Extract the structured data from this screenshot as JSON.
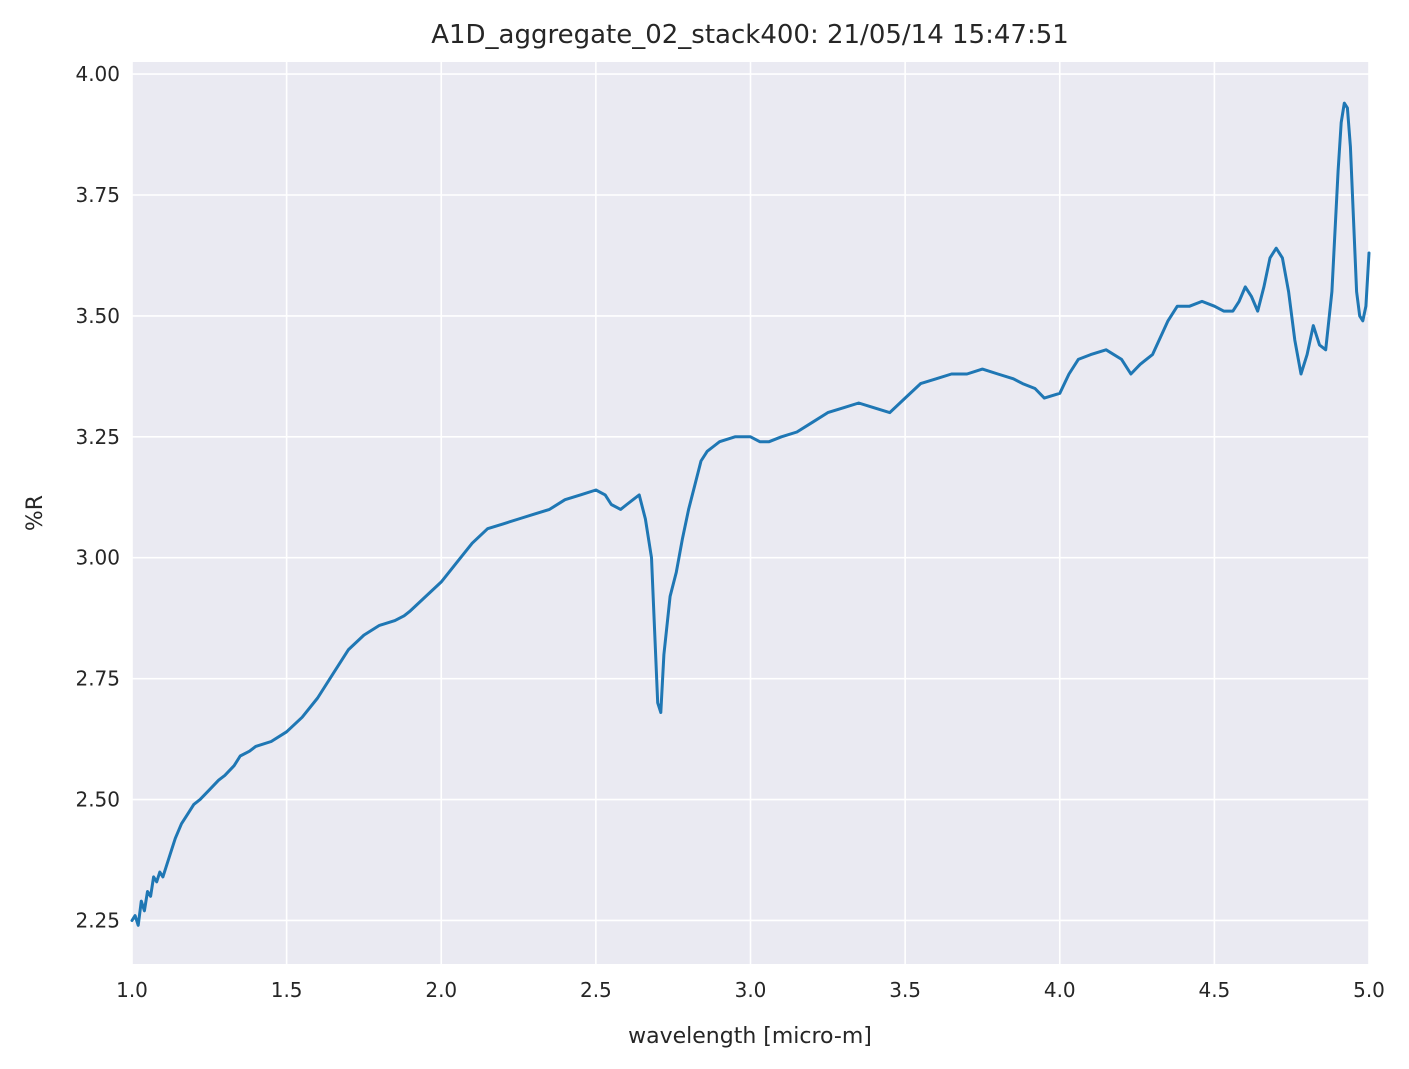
{
  "chart_data": {
    "type": "line",
    "title": "A1D_aggregate_02_stack400:  21/05/14 15:47:51",
    "xlabel": "wavelength [micro-m]",
    "ylabel": "%R",
    "xlim": [
      1.0,
      5.0
    ],
    "ylim": [
      2.16,
      4.025
    ],
    "xticks": [
      "1.0",
      "1.5",
      "2.0",
      "2.5",
      "3.0",
      "3.5",
      "4.0",
      "4.5",
      "5.0"
    ],
    "yticks": [
      "2.25",
      "2.50",
      "2.75",
      "3.00",
      "3.25",
      "3.50",
      "3.75",
      "4.00"
    ],
    "grid": true,
    "background": "#eaeaf2",
    "line_color": "#1f77b4",
    "series": [
      {
        "x": [
          1.0,
          1.01,
          1.02,
          1.03,
          1.04,
          1.05,
          1.06,
          1.07,
          1.08,
          1.09,
          1.1,
          1.12,
          1.14,
          1.16,
          1.18,
          1.2,
          1.22,
          1.25,
          1.28,
          1.3,
          1.33,
          1.35,
          1.38,
          1.4,
          1.45,
          1.5,
          1.55,
          1.6,
          1.65,
          1.7,
          1.75,
          1.8,
          1.85,
          1.88,
          1.9,
          1.95,
          2.0,
          2.05,
          2.1,
          2.15,
          2.2,
          2.25,
          2.3,
          2.35,
          2.4,
          2.45,
          2.5,
          2.53,
          2.55,
          2.58,
          2.6,
          2.62,
          2.64,
          2.66,
          2.68,
          2.69,
          2.7,
          2.71,
          2.72,
          2.74,
          2.76,
          2.78,
          2.8,
          2.82,
          2.84,
          2.86,
          2.88,
          2.9,
          2.95,
          3.0,
          3.03,
          3.06,
          3.1,
          3.15,
          3.2,
          3.25,
          3.3,
          3.35,
          3.4,
          3.45,
          3.5,
          3.55,
          3.6,
          3.65,
          3.7,
          3.75,
          3.8,
          3.85,
          3.88,
          3.92,
          3.95,
          4.0,
          4.03,
          4.06,
          4.1,
          4.15,
          4.2,
          4.23,
          4.26,
          4.3,
          4.35,
          4.38,
          4.42,
          4.46,
          4.5,
          4.53,
          4.56,
          4.58,
          4.6,
          4.62,
          4.64,
          4.66,
          4.68,
          4.7,
          4.72,
          4.74,
          4.76,
          4.78,
          4.8,
          4.82,
          4.84,
          4.86,
          4.88,
          4.9,
          4.91,
          4.92,
          4.93,
          4.94,
          4.95,
          4.96,
          4.97,
          4.98,
          4.99,
          5.0
        ],
        "y": [
          2.25,
          2.26,
          2.24,
          2.29,
          2.27,
          2.31,
          2.3,
          2.34,
          2.33,
          2.35,
          2.34,
          2.38,
          2.42,
          2.45,
          2.47,
          2.49,
          2.5,
          2.52,
          2.54,
          2.55,
          2.57,
          2.59,
          2.6,
          2.61,
          2.62,
          2.64,
          2.67,
          2.71,
          2.76,
          2.81,
          2.84,
          2.86,
          2.87,
          2.88,
          2.89,
          2.92,
          2.95,
          2.99,
          3.03,
          3.06,
          3.07,
          3.08,
          3.09,
          3.1,
          3.12,
          3.13,
          3.14,
          3.13,
          3.11,
          3.1,
          3.11,
          3.12,
          3.13,
          3.08,
          3.0,
          2.85,
          2.7,
          2.68,
          2.8,
          2.92,
          2.97,
          3.04,
          3.1,
          3.15,
          3.2,
          3.22,
          3.23,
          3.24,
          3.25,
          3.25,
          3.24,
          3.24,
          3.25,
          3.26,
          3.28,
          3.3,
          3.31,
          3.32,
          3.31,
          3.3,
          3.33,
          3.36,
          3.37,
          3.38,
          3.38,
          3.39,
          3.38,
          3.37,
          3.36,
          3.35,
          3.33,
          3.34,
          3.38,
          3.41,
          3.42,
          3.43,
          3.41,
          3.38,
          3.4,
          3.42,
          3.49,
          3.52,
          3.52,
          3.53,
          3.52,
          3.51,
          3.51,
          3.53,
          3.56,
          3.54,
          3.51,
          3.56,
          3.62,
          3.64,
          3.62,
          3.55,
          3.45,
          3.38,
          3.42,
          3.48,
          3.44,
          3.43,
          3.55,
          3.8,
          3.9,
          3.94,
          3.93,
          3.85,
          3.7,
          3.55,
          3.5,
          3.49,
          3.52,
          3.63
        ]
      }
    ]
  }
}
